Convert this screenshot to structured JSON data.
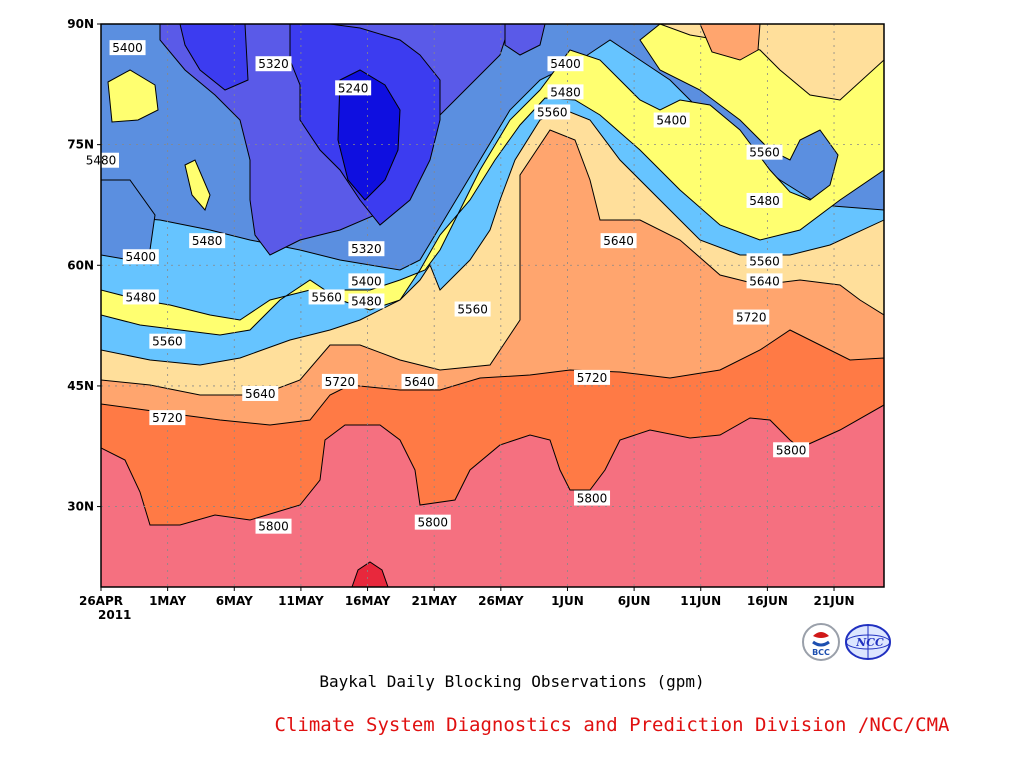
{
  "chart_data": {
    "type": "heatmap",
    "title": "Baykal Daily Blocking Observations (gpm)",
    "yticks": [
      "90N",
      "75N",
      "60N",
      "45N",
      "30N"
    ],
    "xticks": [
      "26APR",
      "1MAY",
      "6MAY",
      "11MAY",
      "16MAY",
      "21MAY",
      "26MAY",
      "1JUN",
      "6JUN",
      "11JUN",
      "16JUN",
      "21JUN"
    ],
    "xtick_year": "2011",
    "ylim_deg": [
      20,
      90
    ],
    "xlim_days": [
      0,
      59
    ],
    "grid": true,
    "levels": [
      5240,
      5320,
      5400,
      5480,
      5560,
      5640,
      5720,
      5800
    ],
    "colors": {
      "below_5240": "#0f0fe0",
      "5240_5320": "#3c3cf0",
      "5320_5400": "#5a5ae8",
      "5400_5480": "#5b8fe0",
      "5480_5560": "#66c4ff",
      "5560_5640": "#ffff70",
      "5640_5720": "#ffdf9b",
      "5720_5800": "#ffa56e",
      "5800_5880": "#ff7a45",
      "above_5880": "#f57080",
      "peak": "#e8283c"
    },
    "contour_labels": [
      {
        "text": "5400",
        "day": 2,
        "lat": 87
      },
      {
        "text": "5320",
        "day": 13,
        "lat": 85
      },
      {
        "text": "5240",
        "day": 19,
        "lat": 82
      },
      {
        "text": "5400",
        "day": 35,
        "lat": 85
      },
      {
        "text": "5480",
        "day": 35,
        "lat": 81.5
      },
      {
        "text": "5560",
        "day": 34,
        "lat": 79
      },
      {
        "text": "5400",
        "day": 43,
        "lat": 78
      },
      {
        "text": "5560",
        "day": 50,
        "lat": 74
      },
      {
        "text": "5480",
        "day": 50,
        "lat": 68
      },
      {
        "text": "5480",
        "day": 0,
        "lat": 73
      },
      {
        "text": "5480",
        "day": 8,
        "lat": 63
      },
      {
        "text": "5400",
        "day": 3,
        "lat": 61
      },
      {
        "text": "5320",
        "day": 20,
        "lat": 62
      },
      {
        "text": "5640",
        "day": 39,
        "lat": 63
      },
      {
        "text": "5400",
        "day": 20,
        "lat": 58
      },
      {
        "text": "5480",
        "day": 3,
        "lat": 56
      },
      {
        "text": "5560",
        "day": 17,
        "lat": 56
      },
      {
        "text": "5480",
        "day": 20,
        "lat": 55.5
      },
      {
        "text": "5560",
        "day": 28,
        "lat": 54.5
      },
      {
        "text": "5560",
        "day": 50,
        "lat": 60.5
      },
      {
        "text": "5640",
        "day": 50,
        "lat": 58
      },
      {
        "text": "5720",
        "day": 49,
        "lat": 53.5
      },
      {
        "text": "5560",
        "day": 5,
        "lat": 50.5
      },
      {
        "text": "5720",
        "day": 18,
        "lat": 45.5
      },
      {
        "text": "5640",
        "day": 24,
        "lat": 45.5
      },
      {
        "text": "5720",
        "day": 37,
        "lat": 46
      },
      {
        "text": "5640",
        "day": 12,
        "lat": 44
      },
      {
        "text": "5720",
        "day": 5,
        "lat": 41
      },
      {
        "text": "5800",
        "day": 52,
        "lat": 37
      },
      {
        "text": "5800",
        "day": 37,
        "lat": 31
      },
      {
        "text": "5800",
        "day": 13,
        "lat": 27.5
      },
      {
        "text": "5800",
        "day": 25,
        "lat": 28
      }
    ]
  },
  "caption": {
    "title": "Baykal Daily Blocking Observations (gpm)",
    "credit": "Climate System Diagnostics and Prediction Division /NCC/CMA"
  },
  "logos": {
    "left_text": "BCC",
    "right_text": "NCC"
  }
}
